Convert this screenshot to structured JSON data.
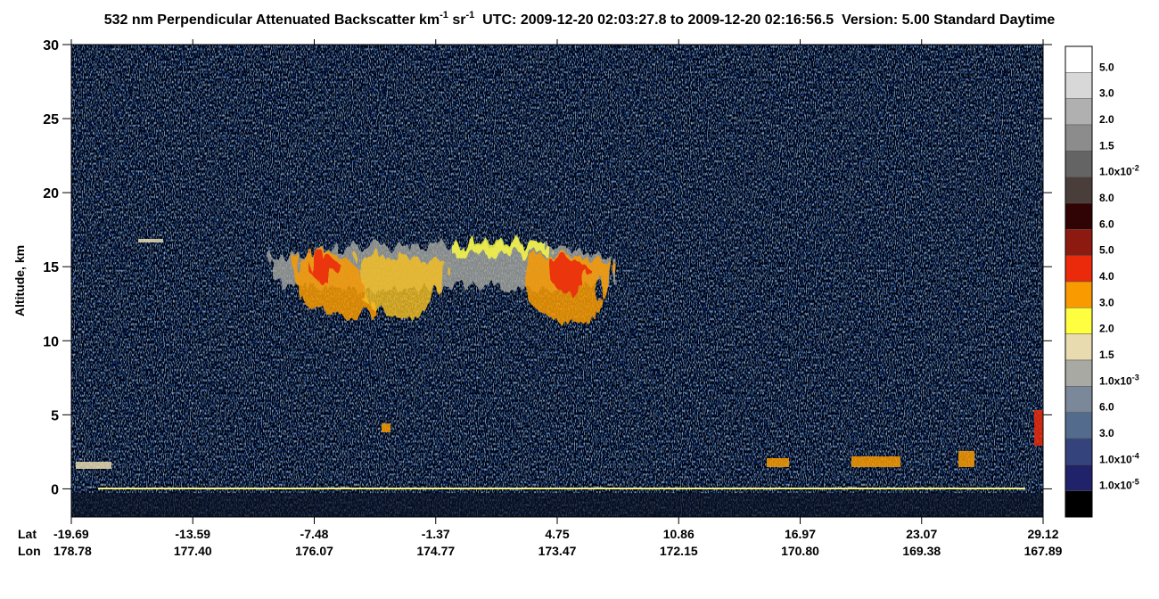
{
  "chart_data": {
    "type": "heatmap",
    "title": {
      "text": "532 nm Perpendicular Attenuated Backscatter km",
      "unit_exp": "-1",
      "unit2": " sr",
      "unit2_exp": "-1",
      "rest": "  UTC: 2009-12-20 02:03:27.8 to 2009-12-20 02:16:56.5  Version: 5.00 Standard Daytime"
    },
    "y_label": "Altitude, km",
    "ylim": [
      -1.9,
      30
    ],
    "yticks": [
      0,
      5,
      10,
      15,
      20,
      25,
      30
    ],
    "x_rows": [
      {
        "name": "Lat",
        "labels": [
          "-19.69",
          "-13.59",
          "-7.48",
          "-1.37",
          "4.75",
          "10.86",
          "16.97",
          "23.07",
          "29.12"
        ]
      },
      {
        "name": "Lon",
        "labels": [
          "178.78",
          "177.40",
          "176.07",
          "174.77",
          "173.47",
          "172.15",
          "170.80",
          "169.38",
          "167.89"
        ]
      }
    ],
    "colorbar": {
      "colors": [
        "#ffffff",
        "#d8d8d8",
        "#b0b0b0",
        "#8c8c8c",
        "#646464",
        "#4a3e3a",
        "#300404",
        "#8c1a10",
        "#ea2a0a",
        "#f89a00",
        "#ffff40",
        "#e8dbb0",
        "#a8a9a2",
        "#7a8899",
        "#536b8c",
        "#34437c",
        "#20226a",
        "#000000"
      ],
      "labels": [
        {
          "text": "5.0"
        },
        {
          "text": "3.0"
        },
        {
          "text": "2.0"
        },
        {
          "text": "1.5"
        },
        {
          "text": "1.0x10",
          "sup": "-2"
        },
        {
          "text": "8.0"
        },
        {
          "text": "6.0"
        },
        {
          "text": "5.0"
        },
        {
          "text": "4.0"
        },
        {
          "text": "3.0"
        },
        {
          "text": "2.0"
        },
        {
          "text": "1.5"
        },
        {
          "text": "1.0x10",
          "sup": "-3"
        },
        {
          "text": "6.0"
        },
        {
          "text": "3.0"
        },
        {
          "text": "1.0x10",
          "sup": "-4"
        },
        {
          "text": "1.0x10",
          "sup": "-5"
        }
      ]
    }
  }
}
